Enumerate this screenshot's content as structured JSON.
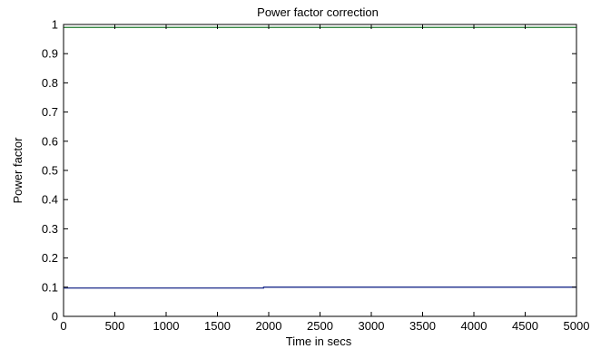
{
  "chart_data": {
    "type": "line",
    "title": "Power factor correction",
    "xlabel": "Time in secs",
    "ylabel": "Power factor",
    "xlim": [
      0,
      5000
    ],
    "ylim": [
      0,
      1
    ],
    "x_ticks": [
      0,
      500,
      1000,
      1500,
      2000,
      2500,
      3000,
      3500,
      4000,
      4500,
      5000
    ],
    "y_ticks": [
      0,
      0.1,
      0.2,
      0.3,
      0.4,
      0.5,
      0.6,
      0.7,
      0.8,
      0.9,
      1
    ],
    "x_tick_labels": [
      "0",
      "500",
      "1000",
      "1500",
      "2000",
      "2500",
      "3000",
      "3500",
      "4000",
      "4500",
      "5000"
    ],
    "y_tick_labels": [
      "0",
      "0.1",
      "0.2",
      "0.3",
      "0.4",
      "0.5",
      "0.6",
      "0.7",
      "0.8",
      "0.9",
      "1"
    ],
    "grid": false,
    "series": [
      {
        "color": "#1f7a2e",
        "x": [
          0,
          5000
        ],
        "y": [
          0.99,
          0.99
        ]
      },
      {
        "color": "#1a2a8a",
        "x": [
          0,
          1950,
          1950,
          5000
        ],
        "y": [
          0.097,
          0.097,
          0.1,
          0.1
        ]
      }
    ]
  }
}
